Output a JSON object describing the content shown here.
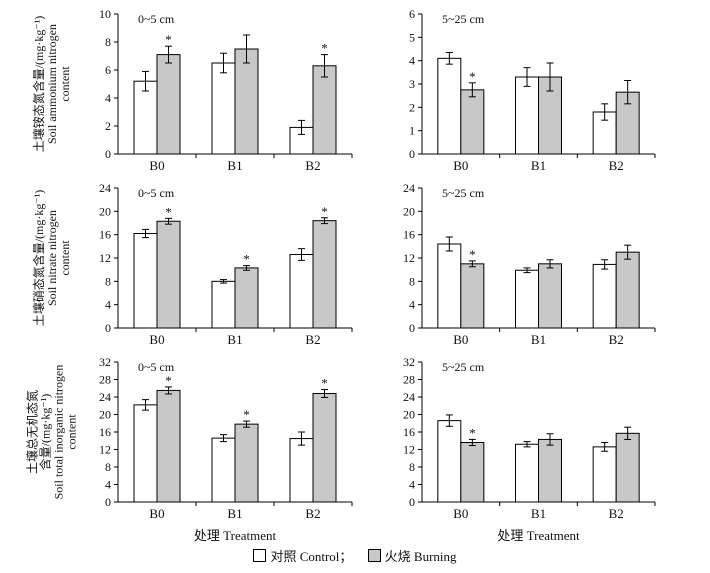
{
  "legend": {
    "control_label": "对照 Control；",
    "burning_label": "火烧 Burning",
    "control_color": "#ffffff",
    "burning_color": "#c8c8c8"
  },
  "x_axis_label": "处理 Treatment",
  "chart_data": [
    {
      "type": "bar",
      "row": 0,
      "col": 0,
      "title": "0~5 cm",
      "ylabel": [
        "土壤铵态氮含量/(mg·kg⁻¹)",
        "Soil ammonium nitrogen",
        "content"
      ],
      "categories": [
        "B0",
        "B1",
        "B2"
      ],
      "ylim": [
        0,
        10
      ],
      "yticks": [
        0,
        2,
        4,
        6,
        8,
        10
      ],
      "series": [
        {
          "name": "Control",
          "values": [
            5.2,
            6.5,
            1.9
          ],
          "errors": [
            0.7,
            0.7,
            0.5
          ]
        },
        {
          "name": "Burning",
          "values": [
            7.1,
            7.5,
            6.3
          ],
          "errors": [
            0.6,
            1.0,
            0.8
          ]
        }
      ],
      "significance": [
        true,
        false,
        true
      ]
    },
    {
      "type": "bar",
      "row": 0,
      "col": 1,
      "title": "5~25 cm",
      "categories": [
        "B0",
        "B1",
        "B2"
      ],
      "ylim": [
        0,
        6
      ],
      "yticks": [
        0,
        1,
        2,
        3,
        4,
        5,
        6
      ],
      "series": [
        {
          "name": "Control",
          "values": [
            4.1,
            3.3,
            1.8
          ],
          "errors": [
            0.25,
            0.4,
            0.35
          ]
        },
        {
          "name": "Burning",
          "values": [
            2.75,
            3.3,
            2.65
          ],
          "errors": [
            0.3,
            0.6,
            0.5
          ]
        }
      ],
      "significance": [
        true,
        false,
        false
      ]
    },
    {
      "type": "bar",
      "row": 1,
      "col": 0,
      "title": "0~5 cm",
      "ylabel": [
        "土壤硝态氮含量/(mg·kg⁻¹)",
        "Soil nitrate nitrogen",
        "content"
      ],
      "categories": [
        "B0",
        "B1",
        "B2"
      ],
      "ylim": [
        0,
        24
      ],
      "yticks": [
        0,
        4,
        8,
        12,
        16,
        20,
        24
      ],
      "series": [
        {
          "name": "Control",
          "values": [
            16.2,
            8.0,
            12.6
          ],
          "errors": [
            0.7,
            0.3,
            1.0
          ]
        },
        {
          "name": "Burning",
          "values": [
            18.3,
            10.3,
            18.4
          ],
          "errors": [
            0.5,
            0.4,
            0.5
          ]
        }
      ],
      "significance": [
        true,
        true,
        true
      ]
    },
    {
      "type": "bar",
      "row": 1,
      "col": 1,
      "title": "5~25 cm",
      "categories": [
        "B0",
        "B1",
        "B2"
      ],
      "ylim": [
        0,
        24
      ],
      "yticks": [
        0,
        4,
        8,
        12,
        16,
        20,
        24
      ],
      "series": [
        {
          "name": "Control",
          "values": [
            14.4,
            9.9,
            10.9
          ],
          "errors": [
            1.2,
            0.4,
            0.8
          ]
        },
        {
          "name": "Burning",
          "values": [
            11.0,
            11.0,
            13.0
          ],
          "errors": [
            0.5,
            0.7,
            1.2
          ]
        }
      ],
      "significance": [
        true,
        false,
        false
      ]
    },
    {
      "type": "bar",
      "row": 2,
      "col": 0,
      "title": "0~5 cm",
      "ylabel": [
        "土壤总无机态氮",
        "含量/(mg·kg⁻¹)",
        "Soil total inorganic nitrogen",
        "content"
      ],
      "categories": [
        "B0",
        "B1",
        "B2"
      ],
      "ylim": [
        0,
        32
      ],
      "yticks": [
        0,
        4,
        8,
        12,
        16,
        20,
        24,
        28,
        32
      ],
      "series": [
        {
          "name": "Control",
          "values": [
            22.2,
            14.6,
            14.5
          ],
          "errors": [
            1.2,
            0.8,
            1.5
          ]
        },
        {
          "name": "Burning",
          "values": [
            25.5,
            17.8,
            24.8
          ],
          "errors": [
            0.8,
            0.7,
            0.9
          ]
        }
      ],
      "significance": [
        true,
        true,
        true
      ]
    },
    {
      "type": "bar",
      "row": 2,
      "col": 1,
      "title": "5~25 cm",
      "categories": [
        "B0",
        "B1",
        "B2"
      ],
      "ylim": [
        0,
        32
      ],
      "yticks": [
        0,
        4,
        8,
        12,
        16,
        20,
        24,
        28,
        32
      ],
      "series": [
        {
          "name": "Control",
          "values": [
            18.6,
            13.2,
            12.6
          ],
          "errors": [
            1.3,
            0.6,
            1.0
          ]
        },
        {
          "name": "Burning",
          "values": [
            13.6,
            14.3,
            15.7
          ],
          "errors": [
            0.7,
            1.3,
            1.4
          ]
        }
      ],
      "significance": [
        true,
        false,
        false
      ]
    }
  ]
}
